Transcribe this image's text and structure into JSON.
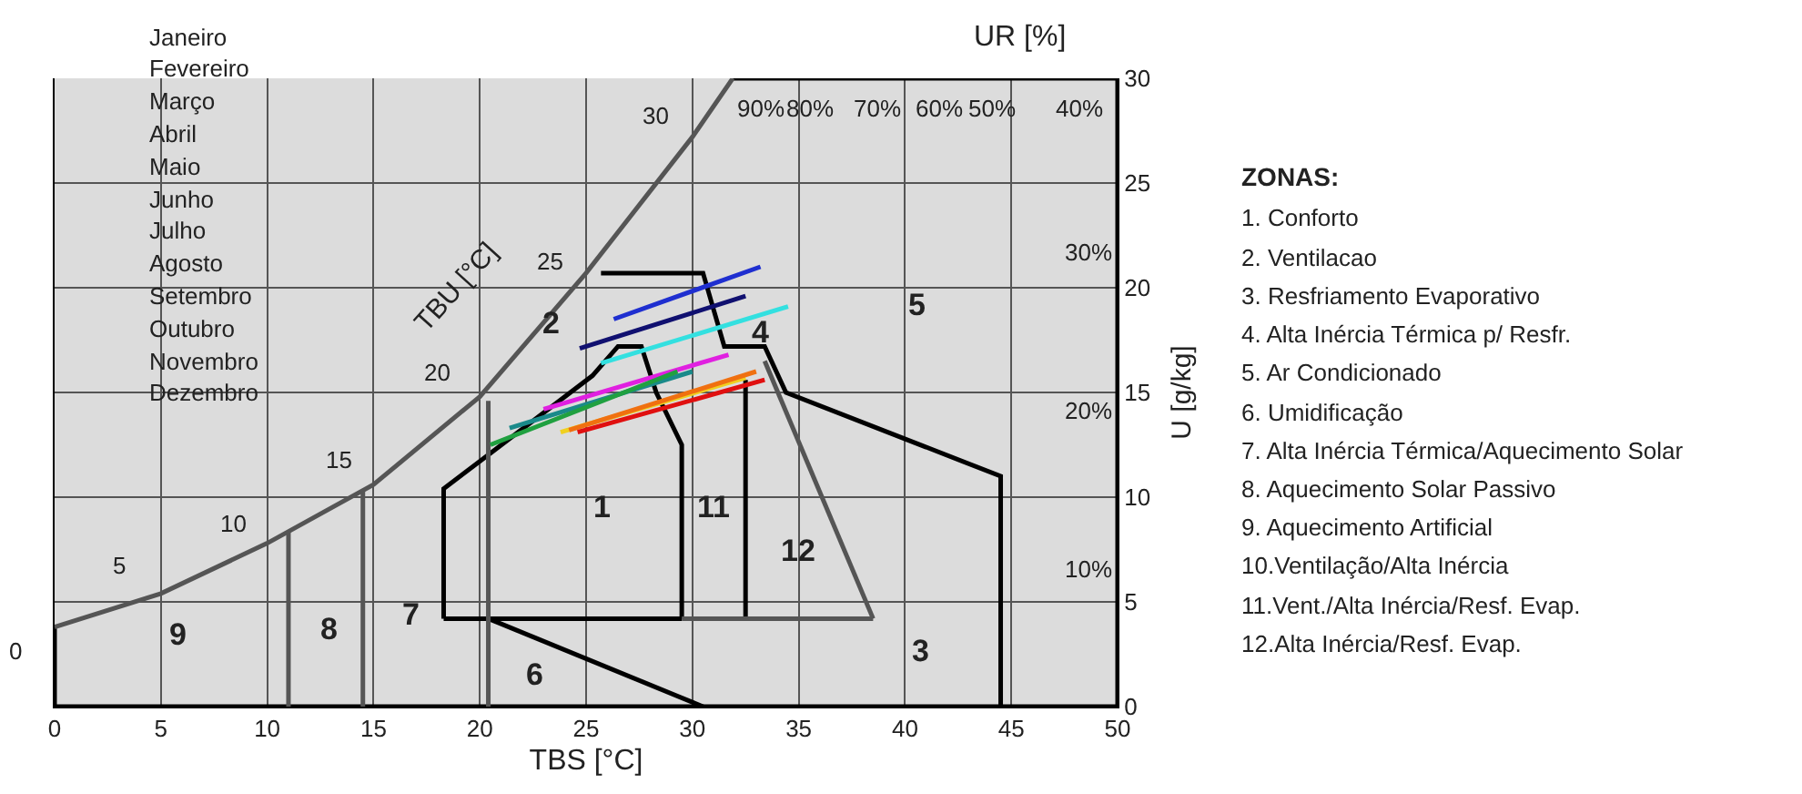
{
  "chart_data": {
    "type": "line",
    "xlabel": "TBS [°C]",
    "ylabel": "U [g/kg]",
    "xlim": [
      0,
      50
    ],
    "ylim": [
      0,
      30
    ],
    "xticks": [
      0,
      5,
      10,
      15,
      20,
      25,
      30,
      35,
      40,
      45,
      50
    ],
    "yticks": [
      0,
      5,
      10,
      15,
      20,
      25,
      30
    ],
    "grid": true,
    "marker": "none",
    "line_style": "solid",
    "series": [
      {
        "color": "#000000",
        "x": [
          0,
          0,
          50,
          50,
          31.9
        ],
        "values": [
          3.8,
          0,
          0,
          30,
          30
        ]
      },
      {
        "color": "#555555",
        "x": [
          0,
          5,
          10,
          15,
          20,
          25,
          30,
          31.9
        ],
        "values": [
          3.8,
          5.4,
          7.8,
          10.6,
          14.8,
          20.7,
          27.2,
          30
        ]
      },
      {
        "color": "#000000",
        "x": [
          18.3,
          18.3,
          25.3,
          26.5,
          27.6,
          28.3,
          29.5,
          29.5
        ],
        "values": [
          4.2,
          10.4,
          15.8,
          17.2,
          17.2,
          15.0,
          12.5,
          4.2
        ]
      },
      {
        "color": "#000000",
        "x": [
          18.3,
          29.5
        ],
        "values": [
          4.2,
          4.2
        ]
      },
      {
        "color": "#000000",
        "x": [
          25.7,
          30.5,
          31.5,
          33.4,
          34.4,
          44.5,
          44.5
        ],
        "values": [
          20.7,
          20.7,
          17.2,
          17.2,
          15.0,
          11.0,
          0
        ]
      },
      {
        "color": "#000000",
        "x": [
          32.5,
          32.5
        ],
        "values": [
          4.2,
          15.6
        ]
      },
      {
        "color": "#555555",
        "x": [
          33.4,
          38.5
        ],
        "values": [
          16.5,
          4.2
        ]
      },
      {
        "color": "#555555",
        "x": [
          29.5,
          38.5
        ],
        "values": [
          4.2,
          4.2
        ]
      },
      {
        "color": "#000000",
        "x": [
          20.4,
          30.5
        ],
        "values": [
          4.2,
          0
        ]
      },
      {
        "color": "#555555",
        "x": [
          11.0,
          11.0
        ],
        "values": [
          0,
          8.3
        ]
      },
      {
        "color": "#555555",
        "x": [
          14.5,
          14.5
        ],
        "values": [
          0,
          10.3
        ]
      },
      {
        "color": "#555555",
        "x": [
          20.4,
          20.4
        ],
        "values": [
          0,
          14.6
        ]
      },
      {
        "color": "#1f2fd0",
        "x": [
          26.3,
          33.2
        ],
        "values": [
          18.5,
          21.0
        ]
      },
      {
        "color": "#101070",
        "x": [
          24.7,
          32.5
        ],
        "values": [
          17.1,
          19.6
        ]
      },
      {
        "color": "#33e0e0",
        "x": [
          25.7,
          34.5
        ],
        "values": [
          16.4,
          19.1
        ]
      },
      {
        "color": "#e020e0",
        "x": [
          23.0,
          31.7
        ],
        "values": [
          14.2,
          16.8
        ]
      },
      {
        "color": "#1a8a8a",
        "x": [
          21.4,
          30.0
        ],
        "values": [
          13.3,
          16.0
        ]
      },
      {
        "color": "#20a040",
        "x": [
          20.5,
          29.3
        ],
        "values": [
          12.5,
          16.0
        ]
      },
      {
        "color": "#f0d020",
        "x": [
          23.8,
          32.5
        ],
        "values": [
          13.1,
          15.7
        ]
      },
      {
        "color": "#f07010",
        "x": [
          24.2,
          33.0
        ],
        "values": [
          13.2,
          16.0
        ]
      },
      {
        "color": "#e01010",
        "x": [
          24.6,
          33.4
        ],
        "values": [
          13.1,
          15.6
        ]
      }
    ],
    "annotations": [
      "0",
      "5",
      "10",
      "15",
      "20",
      "25",
      "30",
      "90%",
      "80%",
      "70%",
      "60%",
      "50%",
      "40%",
      "30%",
      "20%",
      "10%",
      "1",
      "2",
      "3",
      "4",
      "5",
      "6",
      "7",
      "8",
      "9",
      "11",
      "12",
      "TBU [°C]",
      "UR [%]",
      "Janeiro",
      "Fevereiro",
      "Março",
      "Abril",
      "Maio",
      "Junho",
      "Julho",
      "Agosto",
      "Setembro",
      "Outubro",
      "Novembro",
      "Dezembro",
      "ZONAS:",
      "1. Conforto",
      "2. Ventilacao",
      "3. Resfriamento Evaporativo",
      "4. Alta Inércia Térmica p/ Resfr.",
      "5. Ar Condicionado",
      "6. Umidificação",
      "7. Alta Inércia Térmica/Aquecimento Solar",
      "8. Aquecimento Solar Passivo",
      "9. Aquecimento Artificial",
      "10.Ventilação/Alta Inércia",
      "11.Vent./Alta Inércia/Resf. Evap.",
      "12.Alta Inércia/Resf. Evap."
    ]
  }
}
